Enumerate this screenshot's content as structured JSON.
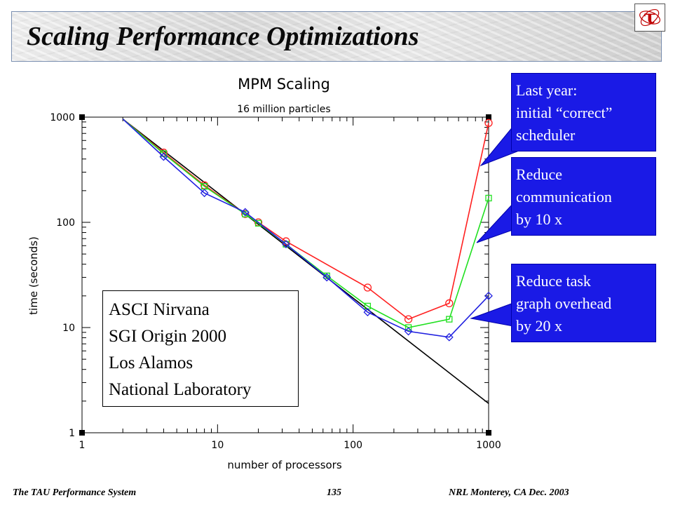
{
  "header": {
    "title": "Scaling Performance Optimizations",
    "logo_glyph": "τ"
  },
  "chart_data": {
    "type": "line",
    "title": "MPM Scaling",
    "subtitle": "16 million particles",
    "xlabel": "number of processors",
    "ylabel": "time (seconds)",
    "xscale": "log",
    "yscale": "log",
    "xlim": [
      1,
      1000
    ],
    "ylim": [
      1,
      1000
    ],
    "x_ticks": [
      "1",
      "10",
      "100",
      "1000"
    ],
    "y_ticks": [
      "1",
      "10",
      "100",
      "1000"
    ],
    "grid": false,
    "series": [
      {
        "color": "#000000",
        "marker": "none",
        "x": [
          2,
          1000
        ],
        "y": [
          960,
          1.9
        ]
      },
      {
        "color": "#ff2020",
        "marker": "circle",
        "x": [
          2,
          4,
          8,
          16,
          20,
          32,
          128,
          256,
          512,
          1000
        ],
        "y": [
          960,
          460,
          225,
          120,
          100,
          66,
          24,
          12,
          17,
          880
        ]
      },
      {
        "color": "#20e020",
        "marker": "square",
        "x": [
          2,
          4,
          8,
          16,
          20,
          32,
          64,
          128,
          256,
          512,
          1000
        ],
        "y": [
          960,
          450,
          220,
          120,
          98,
          62,
          31,
          16,
          10,
          12,
          170
        ]
      },
      {
        "color": "#2020e0",
        "marker": "diamond",
        "x": [
          2,
          4,
          8,
          16,
          32,
          64,
          128,
          256,
          512,
          1000
        ],
        "y": [
          960,
          420,
          190,
          125,
          62,
          30,
          14,
          9.2,
          8.1,
          20
        ]
      }
    ]
  },
  "callouts": [
    {
      "lines": [
        "Last year:",
        "initial “correct”",
        "scheduler"
      ]
    },
    {
      "lines": [
        "Reduce",
        "communication",
        "by 10 x"
      ]
    },
    {
      "lines": [
        "Reduce task",
        "graph overhead",
        "by 20 x"
      ]
    }
  ],
  "info_box": {
    "lines": [
      "ASCI Nirvana",
      "SGI Origin 2000",
      "Los Alamos",
      "National Laboratory"
    ]
  },
  "footer": {
    "left": "The TAU Performance System",
    "center": "135",
    "right": "NRL Monterey, CA Dec. 2003"
  },
  "colors": {
    "callout_bg": "#1a1ae6",
    "callout_text": "#ffffff"
  }
}
